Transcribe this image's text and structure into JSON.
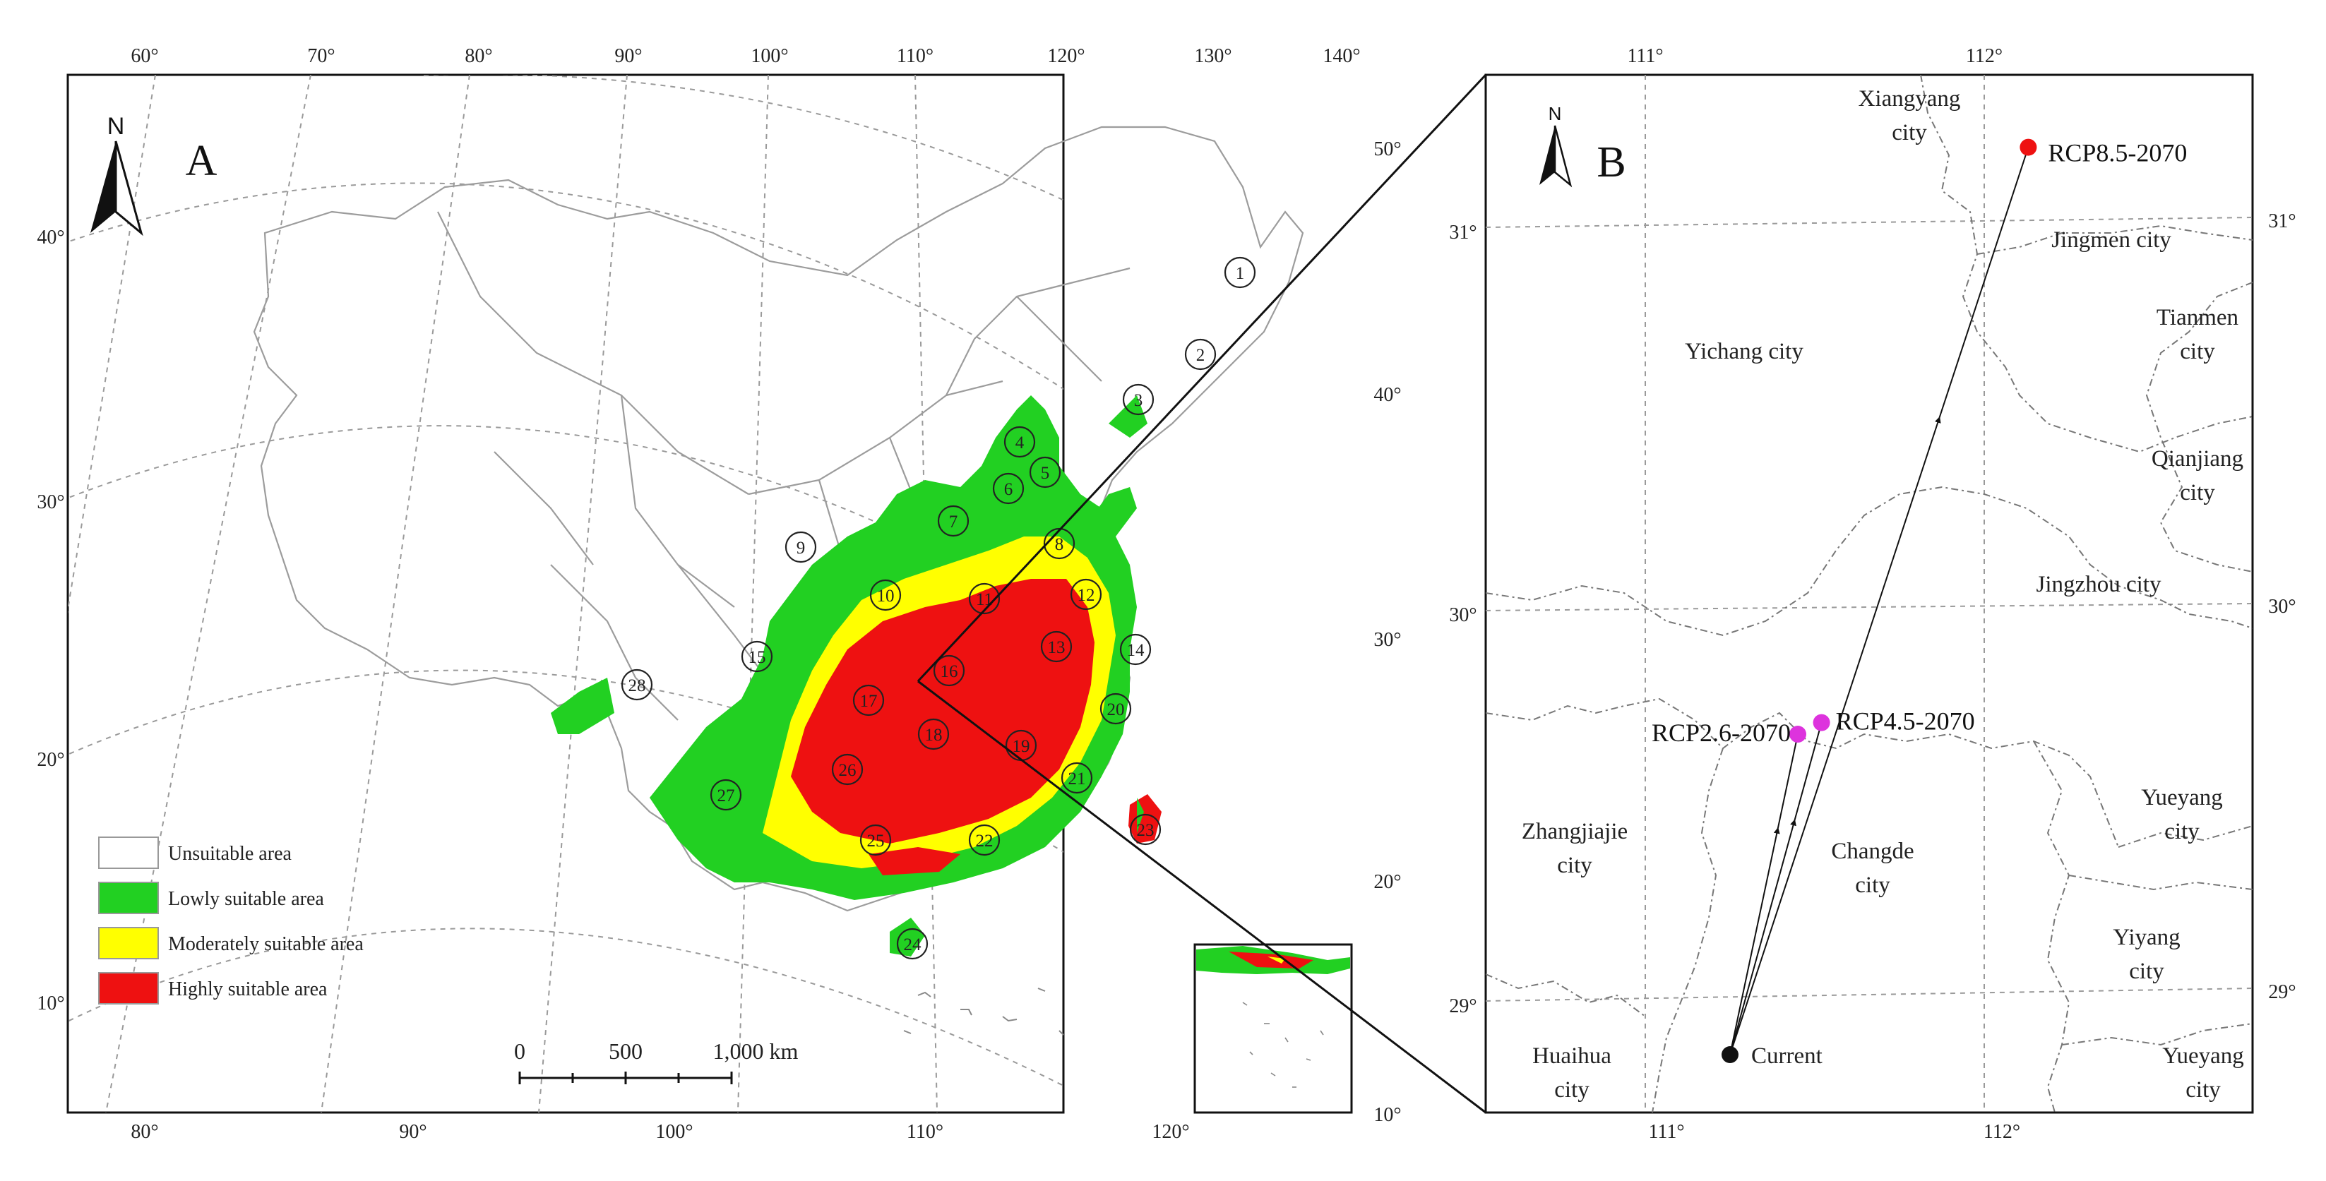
{
  "panel_a": {
    "letter": "A",
    "north_label": "N",
    "lon_ticks_top": [
      "60°",
      "70°",
      "80°",
      "90°",
      "100°",
      "110°",
      "120°",
      "130°",
      "140°"
    ],
    "lon_ticks_bottom": [
      "80°",
      "90°",
      "100°",
      "110°",
      "120°"
    ],
    "lat_ticks_left": [
      "40°",
      "30°",
      "20°",
      "10°"
    ],
    "lat_ticks_right": [
      "50°",
      "40°",
      "30°",
      "20°",
      "10°"
    ],
    "site_numbers": [
      "1",
      "2",
      "3",
      "4",
      "5",
      "6",
      "7",
      "8",
      "9",
      "10",
      "11",
      "12",
      "13",
      "14",
      "15",
      "16",
      "17",
      "18",
      "19",
      "20",
      "21",
      "22",
      "23",
      "24",
      "25",
      "26",
      "27",
      "28"
    ],
    "legend": [
      {
        "label": "Unsuitable area",
        "color": "#ffffff"
      },
      {
        "label": "Lowly suitable area",
        "color": "#22d022"
      },
      {
        "label": "Moderately suitable area",
        "color": "#ffff00"
      },
      {
        "label": "Highly suitable area",
        "color": "#ee1111"
      }
    ],
    "scale_bar": {
      "labels": [
        "0",
        "500",
        "1,000 km"
      ]
    }
  },
  "panel_b": {
    "letter": "B",
    "north_label": "N",
    "lon_ticks_top": [
      "111°",
      "112°"
    ],
    "lon_ticks_bottom": [
      "111°",
      "112°"
    ],
    "lat_ticks_left": [
      "31°",
      "30°",
      "29°"
    ],
    "lat_ticks_right": [
      "31°",
      "30°",
      "29°"
    ],
    "cities": [
      {
        "line1": "Xiangyang",
        "line2": "city"
      },
      {
        "line1": "Jingmen city",
        "line2": ""
      },
      {
        "line1": "Tianmen",
        "line2": "city"
      },
      {
        "line1": "Yichang city",
        "line2": ""
      },
      {
        "line1": "Qianjiang",
        "line2": "city"
      },
      {
        "line1": "Jingzhou city",
        "line2": ""
      },
      {
        "line1": "Zhangjiajie",
        "line2": "city"
      },
      {
        "line1": "Changde",
        "line2": "city"
      },
      {
        "line1": "Yueyang",
        "line2": "city"
      },
      {
        "line1": "Yiyang",
        "line2": "city"
      },
      {
        "line1": "Huaihua",
        "line2": "city"
      },
      {
        "line1": "Yueyang",
        "line2": "city"
      }
    ],
    "centroids": [
      {
        "label": "Current",
        "color": "#111111",
        "lon": 111.25,
        "lat": 28.85
      },
      {
        "label": "RCP2.6-2070",
        "color": "#dd33dd",
        "lon": 111.45,
        "lat": 29.68
      },
      {
        "label": "RCP4.5-2070",
        "color": "#dd33dd",
        "lon": 111.52,
        "lat": 29.71
      },
      {
        "label": "RCP8.5-2070",
        "color": "#ee1111",
        "lon": 112.13,
        "lat": 31.2
      }
    ]
  }
}
